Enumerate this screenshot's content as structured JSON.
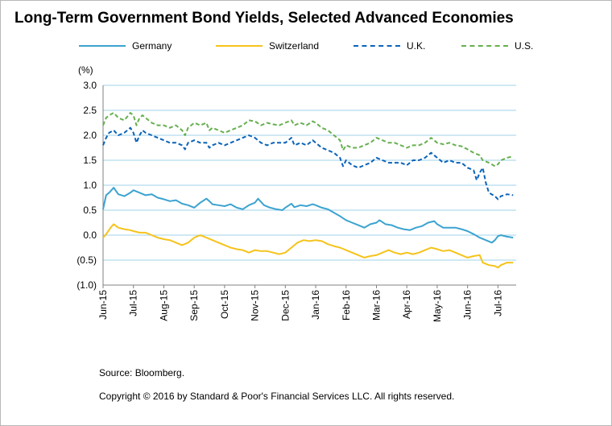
{
  "title": "Long-Term Government Bond Yields, Selected Advanced Economies",
  "source": "Source: Bloomberg.",
  "copyright": "Copyright © 2016 by Standard & Poor's Financial Services LLC. All rights reserved.",
  "chart_data": {
    "type": "line",
    "title": "Long-Term Government Bond Yields, Selected Advanced Economies",
    "ylabel": "(%)",
    "xlabel": "",
    "ylim": [
      -1.0,
      3.0
    ],
    "xlim": [
      0,
      13.6
    ],
    "grid": true,
    "legend_position": "top",
    "y_ticks": [
      {
        "v": 3.0,
        "label": "3.0"
      },
      {
        "v": 2.5,
        "label": "2.5"
      },
      {
        "v": 2.0,
        "label": "2.0"
      },
      {
        "v": 1.5,
        "label": "1.5"
      },
      {
        "v": 1.0,
        "label": "1.0"
      },
      {
        "v": 0.5,
        "label": "0.5"
      },
      {
        "v": 0.0,
        "label": "0.0"
      },
      {
        "v": -0.5,
        "label": "(0.5)"
      },
      {
        "v": -1.0,
        "label": "(1.0)"
      }
    ],
    "x_ticks": [
      "Jun-15",
      "Jul-15",
      "Aug-15",
      "Sep-15",
      "Oct-15",
      "Nov-15",
      "Dec-15",
      "Jan-16",
      "Feb-16",
      "Mar-16",
      "Apr-16",
      "May-16",
      "Jun-16",
      "Jul-16"
    ],
    "series": [
      {
        "name": "Germany",
        "color": "#3ba3d0",
        "dash": "solid",
        "points": [
          [
            0,
            0.52
          ],
          [
            0.1,
            0.8
          ],
          [
            0.2,
            0.85
          ],
          [
            0.35,
            0.95
          ],
          [
            0.5,
            0.82
          ],
          [
            0.7,
            0.78
          ],
          [
            0.9,
            0.85
          ],
          [
            1.0,
            0.9
          ],
          [
            1.2,
            0.85
          ],
          [
            1.4,
            0.8
          ],
          [
            1.6,
            0.82
          ],
          [
            1.8,
            0.75
          ],
          [
            2.0,
            0.72
          ],
          [
            2.2,
            0.68
          ],
          [
            2.4,
            0.7
          ],
          [
            2.6,
            0.63
          ],
          [
            2.8,
            0.6
          ],
          [
            3.0,
            0.55
          ],
          [
            3.2,
            0.65
          ],
          [
            3.4,
            0.73
          ],
          [
            3.5,
            0.68
          ],
          [
            3.6,
            0.62
          ],
          [
            3.8,
            0.6
          ],
          [
            4.0,
            0.58
          ],
          [
            4.2,
            0.62
          ],
          [
            4.4,
            0.55
          ],
          [
            4.6,
            0.52
          ],
          [
            4.8,
            0.6
          ],
          [
            5.0,
            0.65
          ],
          [
            5.1,
            0.73
          ],
          [
            5.3,
            0.6
          ],
          [
            5.5,
            0.55
          ],
          [
            5.7,
            0.52
          ],
          [
            5.9,
            0.5
          ],
          [
            6.0,
            0.55
          ],
          [
            6.2,
            0.63
          ],
          [
            6.3,
            0.56
          ],
          [
            6.5,
            0.6
          ],
          [
            6.7,
            0.58
          ],
          [
            6.9,
            0.62
          ],
          [
            7.0,
            0.6
          ],
          [
            7.2,
            0.55
          ],
          [
            7.4,
            0.52
          ],
          [
            7.6,
            0.45
          ],
          [
            7.8,
            0.38
          ],
          [
            8.0,
            0.3
          ],
          [
            8.2,
            0.25
          ],
          [
            8.4,
            0.2
          ],
          [
            8.6,
            0.15
          ],
          [
            8.8,
            0.22
          ],
          [
            9.0,
            0.25
          ],
          [
            9.1,
            0.3
          ],
          [
            9.3,
            0.22
          ],
          [
            9.5,
            0.2
          ],
          [
            9.7,
            0.15
          ],
          [
            9.9,
            0.12
          ],
          [
            10.1,
            0.1
          ],
          [
            10.3,
            0.15
          ],
          [
            10.5,
            0.18
          ],
          [
            10.7,
            0.25
          ],
          [
            10.9,
            0.28
          ],
          [
            11.0,
            0.22
          ],
          [
            11.2,
            0.15
          ],
          [
            11.4,
            0.15
          ],
          [
            11.6,
            0.15
          ],
          [
            11.8,
            0.12
          ],
          [
            12.0,
            0.08
          ],
          [
            12.2,
            0.02
          ],
          [
            12.4,
            -0.05
          ],
          [
            12.6,
            -0.1
          ],
          [
            12.8,
            -0.15
          ],
          [
            12.9,
            -0.1
          ],
          [
            13.0,
            -0.02
          ],
          [
            13.1,
            0.0
          ],
          [
            13.3,
            -0.03
          ],
          [
            13.5,
            -0.05
          ]
        ]
      },
      {
        "name": "Switzerland",
        "color": "#f6c31b",
        "dash": "solid",
        "points": [
          [
            0,
            -0.05
          ],
          [
            0.1,
            0.02
          ],
          [
            0.25,
            0.15
          ],
          [
            0.35,
            0.22
          ],
          [
            0.5,
            0.15
          ],
          [
            0.7,
            0.12
          ],
          [
            0.9,
            0.1
          ],
          [
            1.0,
            0.08
          ],
          [
            1.2,
            0.05
          ],
          [
            1.4,
            0.05
          ],
          [
            1.6,
            0.0
          ],
          [
            1.8,
            -0.05
          ],
          [
            2.0,
            -0.08
          ],
          [
            2.2,
            -0.1
          ],
          [
            2.4,
            -0.15
          ],
          [
            2.6,
            -0.2
          ],
          [
            2.8,
            -0.15
          ],
          [
            3.0,
            -0.05
          ],
          [
            3.2,
            0.0
          ],
          [
            3.4,
            -0.05
          ],
          [
            3.6,
            -0.1
          ],
          [
            3.8,
            -0.15
          ],
          [
            4.0,
            -0.2
          ],
          [
            4.2,
            -0.25
          ],
          [
            4.4,
            -0.28
          ],
          [
            4.6,
            -0.3
          ],
          [
            4.8,
            -0.35
          ],
          [
            5.0,
            -0.3
          ],
          [
            5.2,
            -0.32
          ],
          [
            5.4,
            -0.32
          ],
          [
            5.6,
            -0.35
          ],
          [
            5.8,
            -0.38
          ],
          [
            6.0,
            -0.35
          ],
          [
            6.2,
            -0.25
          ],
          [
            6.4,
            -0.15
          ],
          [
            6.6,
            -0.1
          ],
          [
            6.8,
            -0.12
          ],
          [
            7.0,
            -0.1
          ],
          [
            7.2,
            -0.12
          ],
          [
            7.4,
            -0.18
          ],
          [
            7.6,
            -0.22
          ],
          [
            7.8,
            -0.25
          ],
          [
            8.0,
            -0.3
          ],
          [
            8.2,
            -0.35
          ],
          [
            8.4,
            -0.4
          ],
          [
            8.6,
            -0.45
          ],
          [
            8.8,
            -0.42
          ],
          [
            9.0,
            -0.4
          ],
          [
            9.2,
            -0.35
          ],
          [
            9.4,
            -0.3
          ],
          [
            9.6,
            -0.35
          ],
          [
            9.8,
            -0.38
          ],
          [
            10.0,
            -0.35
          ],
          [
            10.2,
            -0.38
          ],
          [
            10.4,
            -0.35
          ],
          [
            10.6,
            -0.3
          ],
          [
            10.8,
            -0.25
          ],
          [
            11.0,
            -0.28
          ],
          [
            11.2,
            -0.32
          ],
          [
            11.4,
            -0.3
          ],
          [
            11.6,
            -0.35
          ],
          [
            11.8,
            -0.4
          ],
          [
            12.0,
            -0.45
          ],
          [
            12.2,
            -0.42
          ],
          [
            12.4,
            -0.4
          ],
          [
            12.5,
            -0.55
          ],
          [
            12.7,
            -0.6
          ],
          [
            12.9,
            -0.62
          ],
          [
            13.0,
            -0.65
          ],
          [
            13.1,
            -0.6
          ],
          [
            13.3,
            -0.55
          ],
          [
            13.5,
            -0.55
          ]
        ]
      },
      {
        "name": "U.K.",
        "color": "#0b63b8",
        "dash": "dashed",
        "points": [
          [
            0,
            1.8
          ],
          [
            0.1,
            1.95
          ],
          [
            0.2,
            2.05
          ],
          [
            0.35,
            2.1
          ],
          [
            0.5,
            2.0
          ],
          [
            0.7,
            2.05
          ],
          [
            0.9,
            2.15
          ],
          [
            1.0,
            2.05
          ],
          [
            1.1,
            1.85
          ],
          [
            1.2,
            2.0
          ],
          [
            1.3,
            2.1
          ],
          [
            1.4,
            2.05
          ],
          [
            1.6,
            2.0
          ],
          [
            1.8,
            1.95
          ],
          [
            2.0,
            1.9
          ],
          [
            2.2,
            1.85
          ],
          [
            2.4,
            1.85
          ],
          [
            2.6,
            1.8
          ],
          [
            2.7,
            1.72
          ],
          [
            2.8,
            1.85
          ],
          [
            3.0,
            1.9
          ],
          [
            3.2,
            1.85
          ],
          [
            3.4,
            1.85
          ],
          [
            3.5,
            1.75
          ],
          [
            3.6,
            1.8
          ],
          [
            3.8,
            1.85
          ],
          [
            4.0,
            1.8
          ],
          [
            4.2,
            1.85
          ],
          [
            4.4,
            1.9
          ],
          [
            4.6,
            1.95
          ],
          [
            4.8,
            2.0
          ],
          [
            5.0,
            1.95
          ],
          [
            5.2,
            1.85
          ],
          [
            5.4,
            1.8
          ],
          [
            5.6,
            1.85
          ],
          [
            5.8,
            1.85
          ],
          [
            6.0,
            1.85
          ],
          [
            6.2,
            1.95
          ],
          [
            6.3,
            1.8
          ],
          [
            6.5,
            1.85
          ],
          [
            6.7,
            1.8
          ],
          [
            6.9,
            1.9
          ],
          [
            7.0,
            1.85
          ],
          [
            7.2,
            1.75
          ],
          [
            7.4,
            1.7
          ],
          [
            7.6,
            1.65
          ],
          [
            7.8,
            1.55
          ],
          [
            7.9,
            1.38
          ],
          [
            8.0,
            1.5
          ],
          [
            8.2,
            1.4
          ],
          [
            8.4,
            1.35
          ],
          [
            8.6,
            1.4
          ],
          [
            8.8,
            1.45
          ],
          [
            9.0,
            1.55
          ],
          [
            9.2,
            1.5
          ],
          [
            9.4,
            1.45
          ],
          [
            9.6,
            1.45
          ],
          [
            9.8,
            1.45
          ],
          [
            10.0,
            1.4
          ],
          [
            10.2,
            1.5
          ],
          [
            10.4,
            1.5
          ],
          [
            10.6,
            1.55
          ],
          [
            10.8,
            1.65
          ],
          [
            11.0,
            1.55
          ],
          [
            11.2,
            1.45
          ],
          [
            11.4,
            1.5
          ],
          [
            11.6,
            1.45
          ],
          [
            11.8,
            1.45
          ],
          [
            12.0,
            1.35
          ],
          [
            12.2,
            1.3
          ],
          [
            12.3,
            1.1
          ],
          [
            12.4,
            1.25
          ],
          [
            12.5,
            1.35
          ],
          [
            12.6,
            1.05
          ],
          [
            12.7,
            0.85
          ],
          [
            12.9,
            0.78
          ],
          [
            13.0,
            0.72
          ],
          [
            13.1,
            0.78
          ],
          [
            13.3,
            0.82
          ],
          [
            13.5,
            0.8
          ]
        ]
      },
      {
        "name": "U.S.",
        "color": "#66b04f",
        "dash": "dashed",
        "points": [
          [
            0,
            2.2
          ],
          [
            0.1,
            2.35
          ],
          [
            0.2,
            2.4
          ],
          [
            0.35,
            2.45
          ],
          [
            0.5,
            2.35
          ],
          [
            0.7,
            2.3
          ],
          [
            0.9,
            2.45
          ],
          [
            1.0,
            2.4
          ],
          [
            1.1,
            2.2
          ],
          [
            1.2,
            2.35
          ],
          [
            1.3,
            2.4
          ],
          [
            1.4,
            2.35
          ],
          [
            1.6,
            2.25
          ],
          [
            1.8,
            2.2
          ],
          [
            2.0,
            2.2
          ],
          [
            2.2,
            2.15
          ],
          [
            2.4,
            2.2
          ],
          [
            2.6,
            2.1
          ],
          [
            2.7,
            2.0
          ],
          [
            2.8,
            2.15
          ],
          [
            3.0,
            2.25
          ],
          [
            3.2,
            2.2
          ],
          [
            3.4,
            2.25
          ],
          [
            3.5,
            2.1
          ],
          [
            3.6,
            2.15
          ],
          [
            3.8,
            2.1
          ],
          [
            4.0,
            2.05
          ],
          [
            4.2,
            2.1
          ],
          [
            4.4,
            2.15
          ],
          [
            4.6,
            2.2
          ],
          [
            4.8,
            2.3
          ],
          [
            5.0,
            2.28
          ],
          [
            5.2,
            2.2
          ],
          [
            5.4,
            2.25
          ],
          [
            5.6,
            2.22
          ],
          [
            5.8,
            2.2
          ],
          [
            6.0,
            2.25
          ],
          [
            6.2,
            2.3
          ],
          [
            6.3,
            2.2
          ],
          [
            6.5,
            2.25
          ],
          [
            6.7,
            2.2
          ],
          [
            6.9,
            2.28
          ],
          [
            7.0,
            2.25
          ],
          [
            7.2,
            2.15
          ],
          [
            7.4,
            2.1
          ],
          [
            7.6,
            2.0
          ],
          [
            7.8,
            1.9
          ],
          [
            7.9,
            1.7
          ],
          [
            8.0,
            1.8
          ],
          [
            8.2,
            1.75
          ],
          [
            8.4,
            1.75
          ],
          [
            8.6,
            1.8
          ],
          [
            8.8,
            1.85
          ],
          [
            9.0,
            1.95
          ],
          [
            9.2,
            1.9
          ],
          [
            9.4,
            1.85
          ],
          [
            9.6,
            1.85
          ],
          [
            9.8,
            1.8
          ],
          [
            10.0,
            1.75
          ],
          [
            10.2,
            1.8
          ],
          [
            10.4,
            1.8
          ],
          [
            10.6,
            1.85
          ],
          [
            10.8,
            1.95
          ],
          [
            11.0,
            1.85
          ],
          [
            11.2,
            1.82
          ],
          [
            11.4,
            1.85
          ],
          [
            11.6,
            1.8
          ],
          [
            11.8,
            1.78
          ],
          [
            12.0,
            1.72
          ],
          [
            12.2,
            1.65
          ],
          [
            12.4,
            1.6
          ],
          [
            12.5,
            1.5
          ],
          [
            12.7,
            1.45
          ],
          [
            12.9,
            1.38
          ],
          [
            13.0,
            1.42
          ],
          [
            13.1,
            1.5
          ],
          [
            13.3,
            1.55
          ],
          [
            13.5,
            1.58
          ]
        ]
      }
    ]
  }
}
